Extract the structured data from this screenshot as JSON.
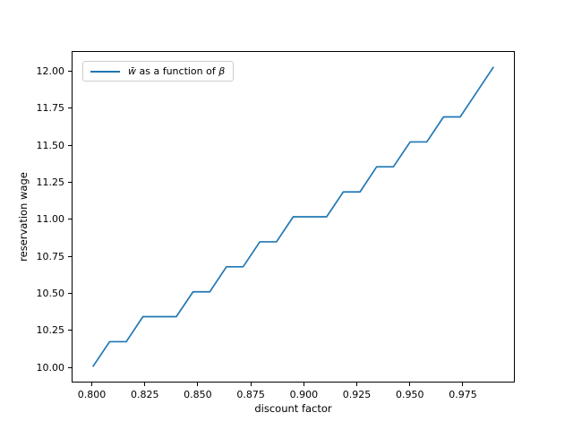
{
  "figure": {
    "background": "#ffffff"
  },
  "chart_data": {
    "type": "line",
    "title": "",
    "xlabel": "discount factor",
    "ylabel": "reservation wage",
    "grid": false,
    "line_color": "#1f77b4",
    "line_width": 1.7,
    "xlim": [
      0.7905,
      0.9995
    ],
    "ylim": [
      9.8983,
      12.1357
    ],
    "x_ticks": [
      0.8,
      0.825,
      0.85,
      0.875,
      0.9,
      0.925,
      0.95,
      0.975
    ],
    "x_tick_labels": [
      "0.800",
      "0.825",
      "0.850",
      "0.875",
      "0.900",
      "0.925",
      "0.950",
      "0.975"
    ],
    "y_ticks": [
      10.0,
      10.25,
      10.5,
      10.75,
      11.0,
      11.25,
      11.5,
      11.75,
      12.0
    ],
    "y_tick_labels": [
      "10.00",
      "10.25",
      "10.50",
      "10.75",
      "11.00",
      "11.25",
      "11.50",
      "11.75",
      "12.00"
    ],
    "legend": {
      "position": "upper left",
      "label_w": "w̄",
      "label_text": " as a function of ",
      "label_beta": "β",
      "sample_color": "#1f77b4"
    },
    "series": [
      {
        "name": "w̄ as a function of β",
        "x": [
          0.8,
          0.80792,
          0.81583,
          0.82375,
          0.83167,
          0.83958,
          0.8475,
          0.85542,
          0.86333,
          0.87125,
          0.87917,
          0.88708,
          0.895,
          0.90292,
          0.91083,
          0.91875,
          0.92667,
          0.93458,
          0.9425,
          0.95042,
          0.95833,
          0.96625,
          0.97417,
          0.98208,
          0.99
        ],
        "y": [
          10.0,
          10.169,
          10.169,
          10.339,
          10.339,
          10.339,
          10.508,
          10.508,
          10.678,
          10.678,
          10.847,
          10.847,
          11.017,
          11.017,
          11.017,
          11.186,
          11.186,
          11.356,
          11.356,
          11.525,
          11.525,
          11.695,
          11.695,
          11.864,
          12.034
        ]
      }
    ]
  }
}
